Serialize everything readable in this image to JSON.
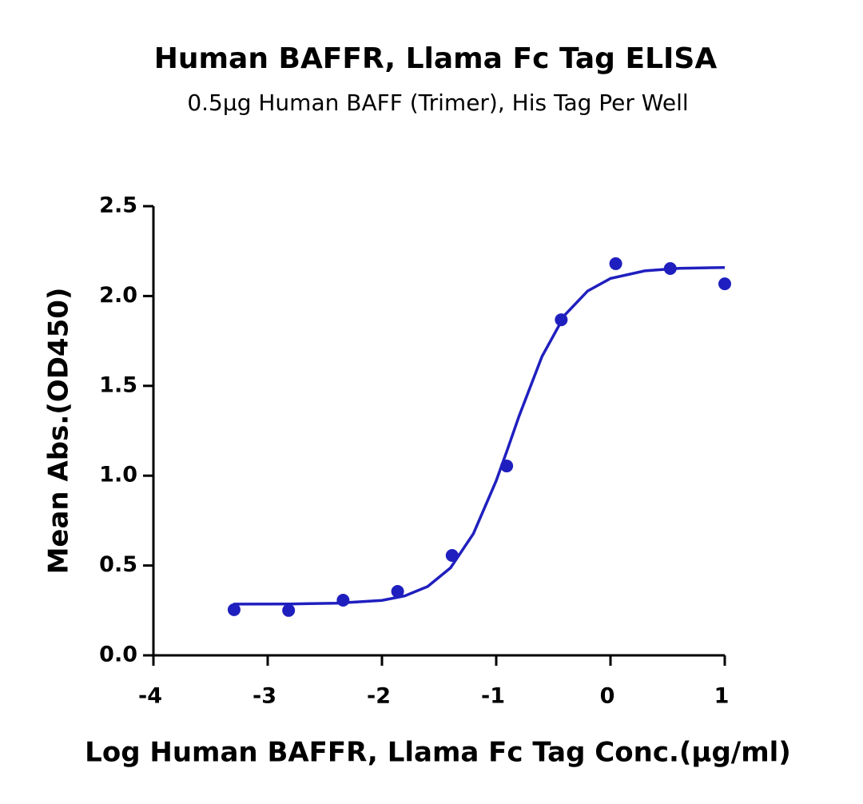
{
  "chart_data": {
    "type": "scatter",
    "title": "Human BAFFR, Llama Fc Tag ELISA",
    "subtitle": "0.5µg Human BAFF (Trimer), His Tag Per Well",
    "x_label": "Log Human BAFFR, Llama Fc Tag Conc.(µg/ml)",
    "y_label": "Mean Abs.(OD450)",
    "series": [
      {
        "type": "scatter",
        "color": "#1f1fbf",
        "x": [
          -3.294,
          -2.817,
          -2.34,
          -1.863,
          -1.386,
          -0.908,
          -0.431,
          0.046,
          0.523,
          1.0
        ],
        "values": [
          0.254,
          0.25,
          0.307,
          0.356,
          0.556,
          1.054,
          1.868,
          2.18,
          2.153,
          2.068
        ]
      },
      {
        "type": "line",
        "color": "#1f1fbf",
        "x": [
          -3.3,
          -2.8,
          -2.4,
          -2.0,
          -1.8,
          -1.6,
          -1.4,
          -1.2,
          -1.0,
          -0.9,
          -0.8,
          -0.6,
          -0.4,
          -0.2,
          0.0,
          0.3,
          0.6,
          1.0
        ],
        "values": [
          0.285,
          0.286,
          0.29,
          0.306,
          0.331,
          0.383,
          0.487,
          0.677,
          0.972,
          1.149,
          1.332,
          1.663,
          1.894,
          2.028,
          2.098,
          2.14,
          2.154,
          2.159
        ]
      }
    ],
    "xlim": [
      -4,
      1
    ],
    "xticks": [
      -4,
      -3,
      -2,
      -1,
      0,
      1
    ],
    "ylim": [
      0,
      2.5
    ],
    "yticks": [
      {
        "value": 0,
        "label": "0.0"
      },
      0.5,
      {
        "value": 1,
        "label": "1.0"
      },
      1.5,
      {
        "value": 2,
        "label": "2.0"
      },
      2.5
    ]
  }
}
